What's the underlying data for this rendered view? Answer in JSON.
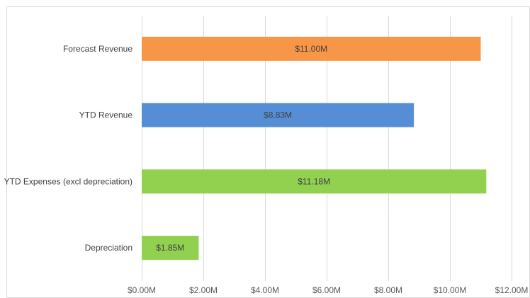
{
  "chart_data": {
    "type": "bar",
    "orientation": "horizontal",
    "categories": [
      "Forecast Revenue",
      "YTD Revenue",
      "YTD Expenses (excl depreciation)",
      "Depreciation"
    ],
    "values": [
      11.0,
      8.83,
      11.18,
      1.85
    ],
    "value_labels": [
      "$11.00M",
      "$8.83M",
      "$11.18M",
      "$1.85M"
    ],
    "colors": [
      "#F79646",
      "#558ED5",
      "#92D050",
      "#92D050"
    ],
    "xlim": [
      0,
      12
    ],
    "xticks": [
      0,
      2,
      4,
      6,
      8,
      10,
      12
    ],
    "xtick_labels": [
      "$0.00M",
      "$2.00M",
      "$4.00M",
      "$6.00M",
      "$8.00M",
      "$10.00M",
      "$12.00M"
    ],
    "grid": "vertical",
    "legend": "none"
  }
}
